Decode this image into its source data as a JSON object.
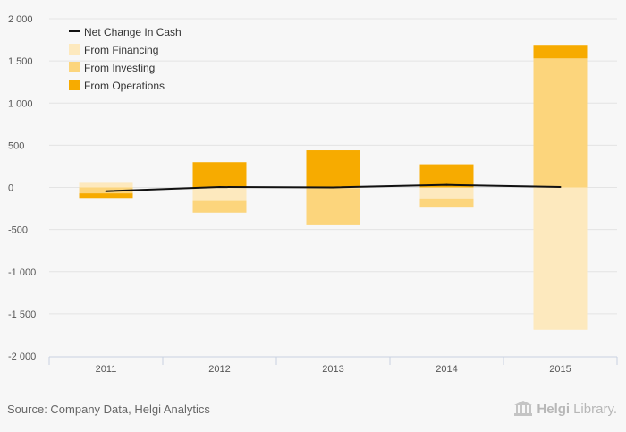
{
  "chart_data": {
    "type": "bar",
    "stacked": true,
    "categories": [
      "2011",
      "2012",
      "2013",
      "2014",
      "2015"
    ],
    "series": [
      {
        "name": "From Financing",
        "type": "bar",
        "color": "#fde9be",
        "values": [
          54,
          -160,
          -10,
          -130,
          -1690
        ]
      },
      {
        "name": "From Investing",
        "type": "bar",
        "color": "#fcd57c",
        "values": [
          -70,
          -140,
          -440,
          -100,
          1530
        ]
      },
      {
        "name": "From Operations",
        "type": "bar",
        "color": "#f7ab00",
        "values": [
          -55,
          300,
          440,
          275,
          160
        ]
      },
      {
        "name": "Net Change In Cash",
        "type": "line",
        "color": "#111111",
        "values": [
          -45,
          5,
          0,
          30,
          5
        ]
      }
    ],
    "ylim": [
      -2000,
      2000
    ],
    "yticks": [
      -2000,
      -1500,
      -1000,
      -500,
      0,
      500,
      1000,
      1500,
      2000
    ],
    "ytick_labels": [
      "-2 000",
      "-1 500",
      "-1 000",
      "-500",
      "0",
      "500",
      "1 000",
      "1 500",
      "2 000"
    ],
    "grid": true,
    "legend_position": "top-left",
    "legend": [
      "Net Change In Cash",
      "From Financing",
      "From Investing",
      "From Operations"
    ]
  },
  "footer": {
    "source": "Source: Company Data, Helgi Analytics",
    "logo_main": "Helgi",
    "logo_sub": "Library."
  }
}
